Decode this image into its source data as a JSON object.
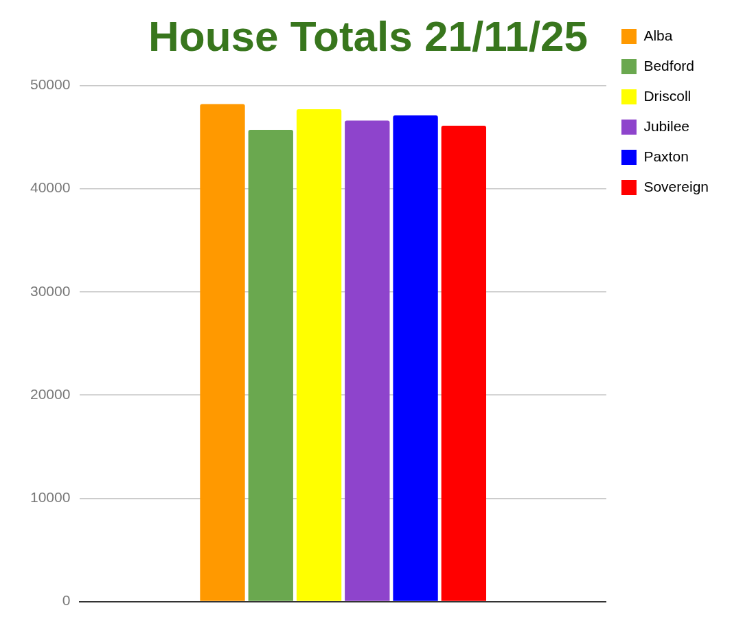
{
  "chart_data": {
    "type": "bar",
    "title": "House Totals 21/11/25",
    "categories": [
      null
    ],
    "series": [
      {
        "name": "Alba",
        "color": "#ff9900",
        "values": [
          48200
        ]
      },
      {
        "name": "Bedford",
        "color": "#6aa84f",
        "values": [
          45700
        ]
      },
      {
        "name": "Driscoll",
        "color": "#ffff00",
        "values": [
          47700
        ]
      },
      {
        "name": "Jubilee",
        "color": "#8e44cc",
        "values": [
          46600
        ]
      },
      {
        "name": "Paxton",
        "color": "#0000ff",
        "values": [
          47100
        ]
      },
      {
        "name": "Sovereign",
        "color": "#ff0000",
        "values": [
          46100
        ]
      }
    ],
    "ylim": [
      0,
      50000
    ],
    "yticks": [
      0,
      10000,
      20000,
      30000,
      40000,
      50000
    ],
    "grid": "y",
    "legend": "right"
  }
}
